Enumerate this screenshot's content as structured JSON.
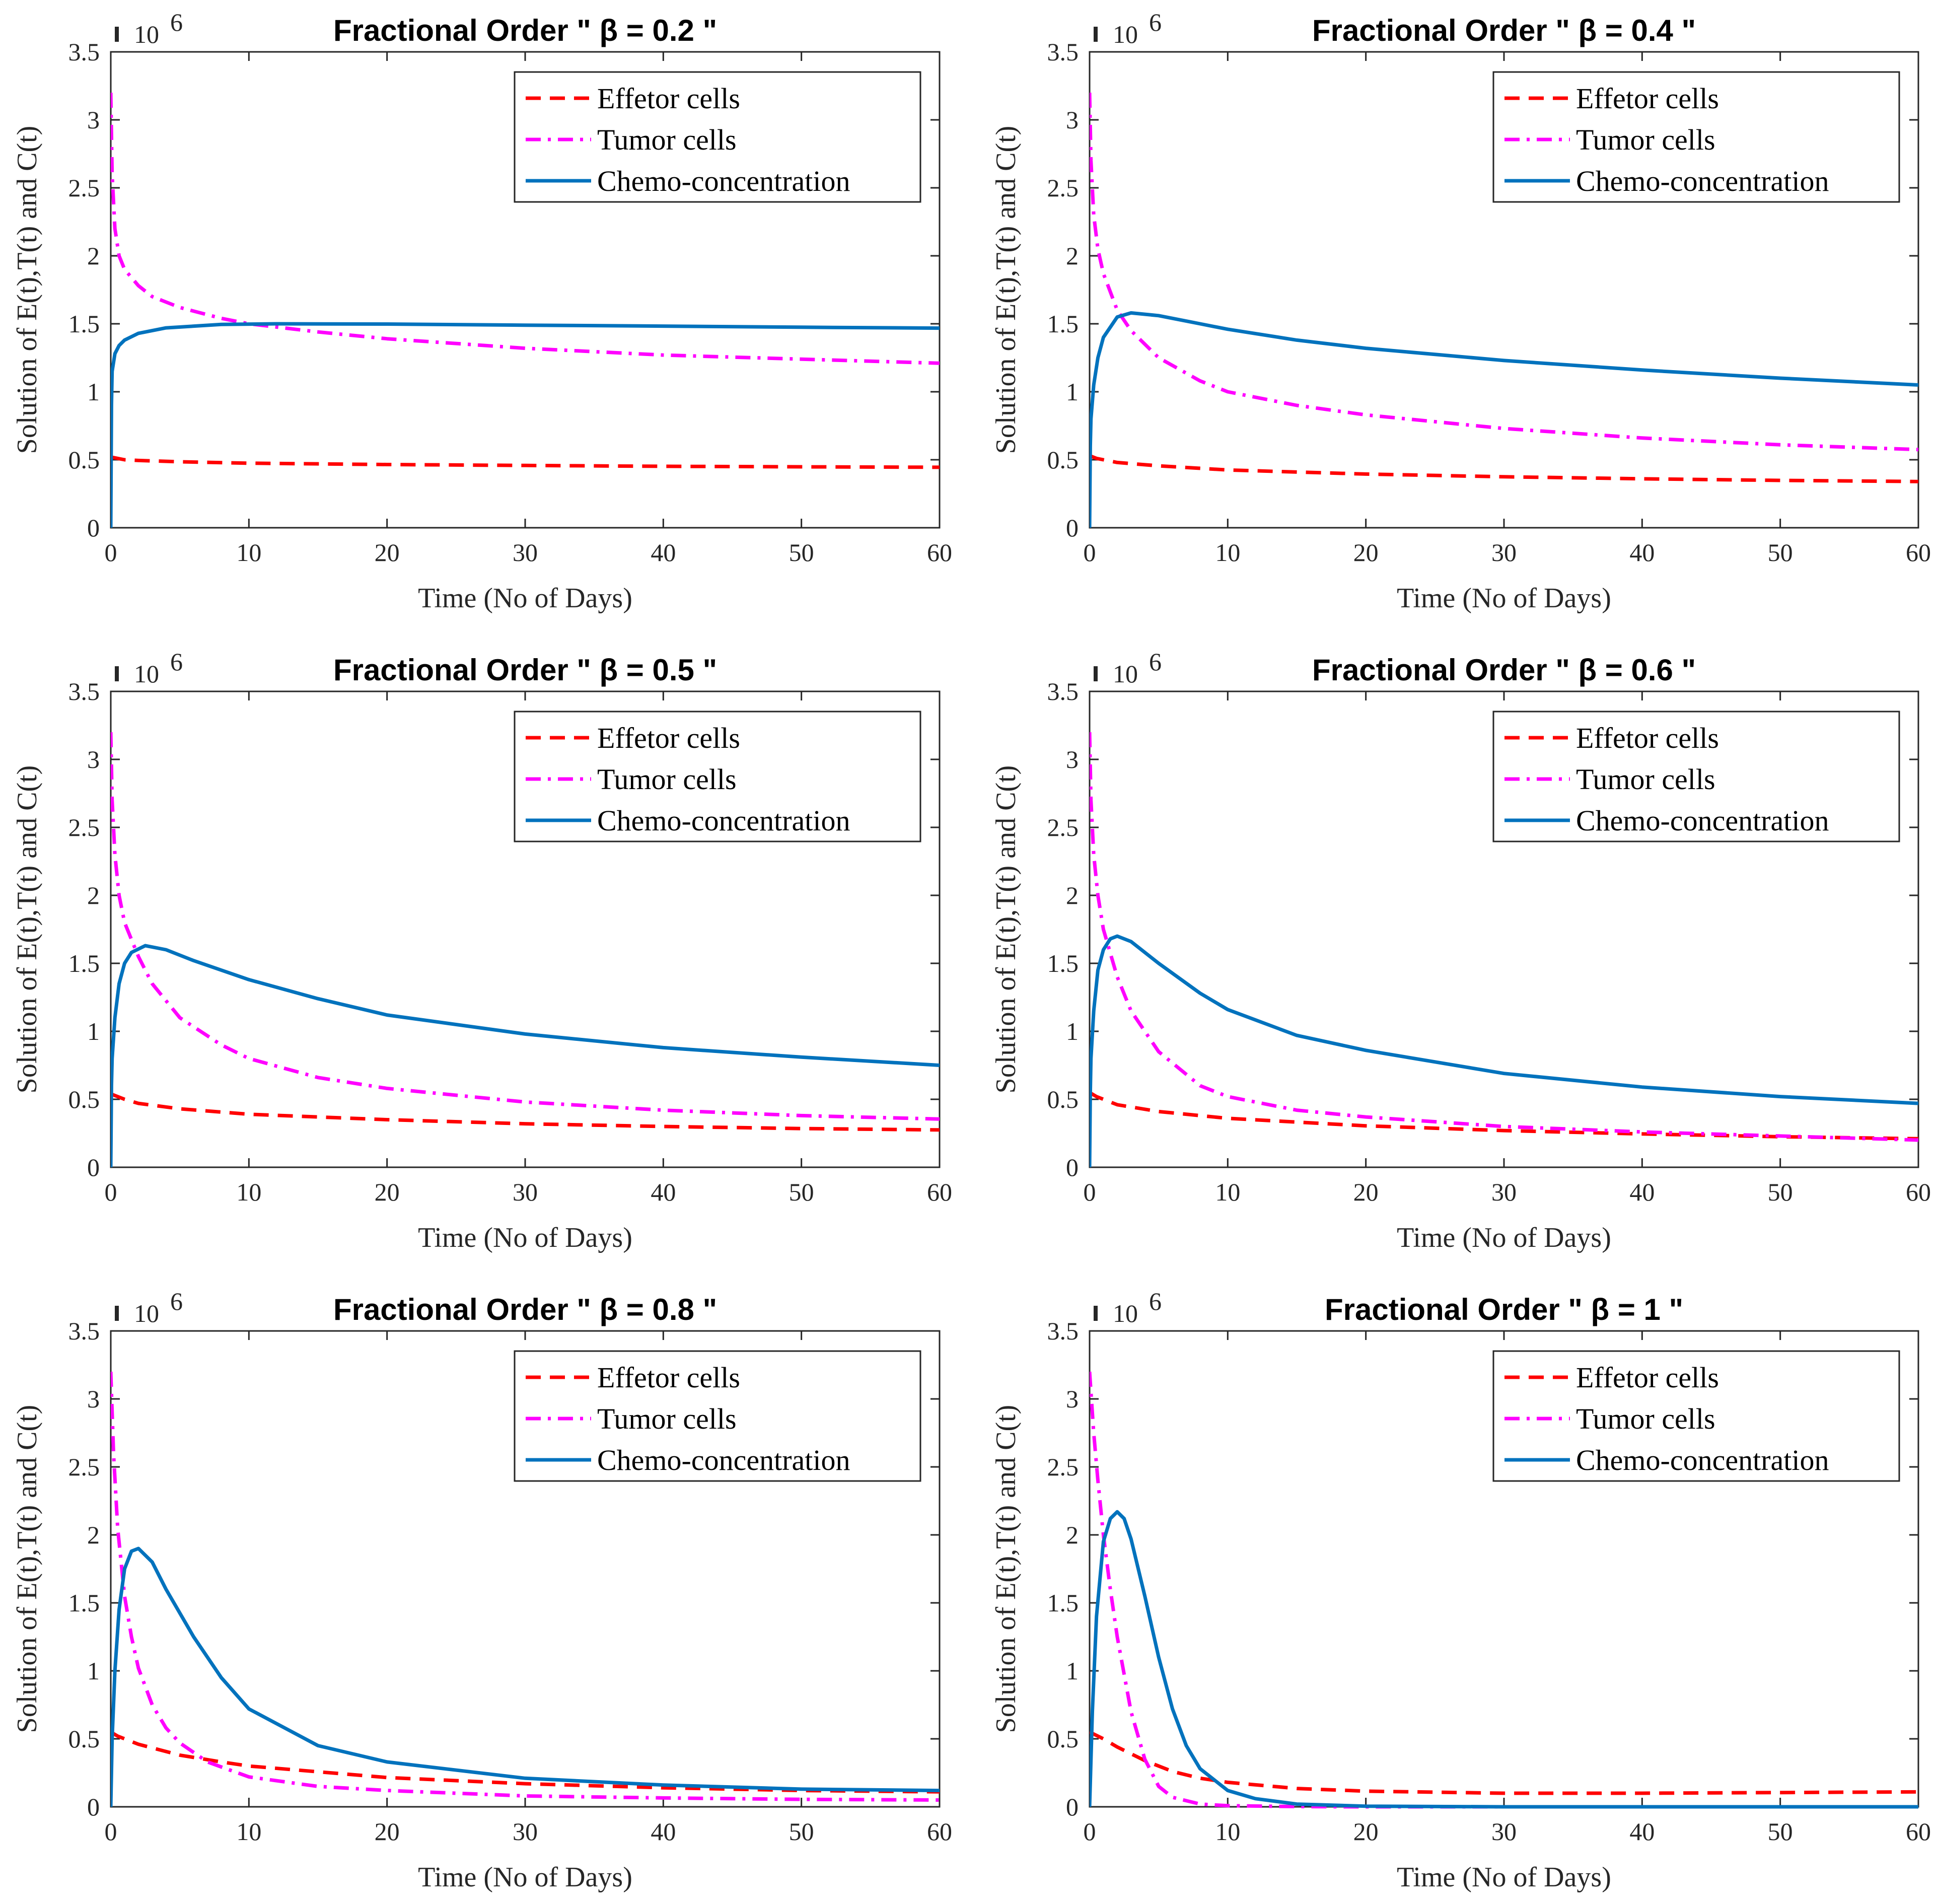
{
  "chart_data": [
    {
      "type": "line",
      "title": "Fractional Order \" β = 0.2 \"",
      "xlabel": "Time (No of Days)",
      "ylabel": "Solution of E(t),T(t) and C(t)",
      "y_multiplier_label": "10",
      "y_multiplier_exponent": "6",
      "xlim": [
        0,
        60
      ],
      "ylim": [
        0,
        3.5
      ],
      "xticks": [
        "0",
        "10",
        "20",
        "30",
        "40",
        "50",
        "60"
      ],
      "yticks": [
        "0",
        "0.5",
        "1",
        "1.5",
        "2",
        "2.5",
        "3",
        "3.5"
      ],
      "legend_position": "top-right",
      "series": [
        {
          "name": "Effetor cells",
          "style": "dashed",
          "color": "#ff0000",
          "x": [
            0,
            0.5,
            1,
            2,
            5,
            10,
            20,
            30,
            40,
            50,
            60
          ],
          "y": [
            0.52,
            0.51,
            0.5,
            0.495,
            0.485,
            0.475,
            0.465,
            0.458,
            0.452,
            0.448,
            0.445
          ]
        },
        {
          "name": "Tumor cells",
          "style": "dashdot",
          "color": "#ff00ff",
          "x": [
            0,
            0.1,
            0.3,
            0.6,
            1,
            2,
            3,
            5,
            8,
            10,
            15,
            20,
            30,
            40,
            50,
            60
          ],
          "y": [
            3.2,
            2.6,
            2.2,
            2.0,
            1.9,
            1.78,
            1.7,
            1.62,
            1.54,
            1.5,
            1.44,
            1.39,
            1.32,
            1.27,
            1.24,
            1.21
          ]
        },
        {
          "name": "Chemo-concentration",
          "style": "solid",
          "color": "#0072bd",
          "x": [
            0,
            0.05,
            0.1,
            0.3,
            0.6,
            1,
            2,
            4,
            8,
            12,
            20,
            30,
            40,
            50,
            60
          ],
          "y": [
            0,
            0.9,
            1.15,
            1.28,
            1.34,
            1.38,
            1.43,
            1.47,
            1.495,
            1.5,
            1.498,
            1.49,
            1.483,
            1.475,
            1.468
          ]
        }
      ]
    },
    {
      "type": "line",
      "title": "Fractional Order \" β = 0.4 \"",
      "xlabel": "Time (No of Days)",
      "ylabel": "Solution of E(t),T(t) and C(t)",
      "y_multiplier_label": "10",
      "y_multiplier_exponent": "6",
      "xlim": [
        0,
        60
      ],
      "ylim": [
        0,
        3.5
      ],
      "xticks": [
        "0",
        "10",
        "20",
        "30",
        "40",
        "50",
        "60"
      ],
      "yticks": [
        "0",
        "0.5",
        "1",
        "1.5",
        "2",
        "2.5",
        "3",
        "3.5"
      ],
      "legend_position": "top-right",
      "series": [
        {
          "name": "Effetor cells",
          "style": "dashed",
          "color": "#ff0000",
          "x": [
            0,
            0.5,
            1,
            2,
            5,
            10,
            20,
            30,
            40,
            50,
            60
          ],
          "y": [
            0.53,
            0.51,
            0.5,
            0.48,
            0.455,
            0.425,
            0.395,
            0.375,
            0.36,
            0.348,
            0.34
          ]
        },
        {
          "name": "Tumor cells",
          "style": "dashdot",
          "color": "#ff00ff",
          "x": [
            0,
            0.1,
            0.3,
            0.6,
            1,
            2,
            3,
            5,
            8,
            10,
            15,
            20,
            30,
            40,
            50,
            60
          ],
          "y": [
            3.2,
            2.7,
            2.3,
            2.05,
            1.87,
            1.6,
            1.45,
            1.25,
            1.08,
            1.0,
            0.9,
            0.83,
            0.73,
            0.66,
            0.61,
            0.575
          ]
        },
        {
          "name": "Chemo-concentration",
          "style": "solid",
          "color": "#0072bd",
          "x": [
            0,
            0.05,
            0.1,
            0.3,
            0.6,
            1,
            2,
            3,
            5,
            8,
            10,
            15,
            20,
            30,
            40,
            50,
            60
          ],
          "y": [
            0,
            0.6,
            0.8,
            1.05,
            1.25,
            1.4,
            1.55,
            1.58,
            1.56,
            1.5,
            1.46,
            1.38,
            1.32,
            1.23,
            1.16,
            1.1,
            1.05
          ]
        }
      ]
    },
    {
      "type": "line",
      "title": "Fractional Order \" β = 0.5 \"",
      "xlabel": "Time (No of Days)",
      "ylabel": "Solution of E(t),T(t) and C(t)",
      "y_multiplier_label": "10",
      "y_multiplier_exponent": "6",
      "xlim": [
        0,
        60
      ],
      "ylim": [
        0,
        3.5
      ],
      "xticks": [
        "0",
        "10",
        "20",
        "30",
        "40",
        "50",
        "60"
      ],
      "yticks": [
        "0",
        "0.5",
        "1",
        "1.5",
        "2",
        "2.5",
        "3",
        "3.5"
      ],
      "legend_position": "top-right",
      "series": [
        {
          "name": "Effetor cells",
          "style": "dashed",
          "color": "#ff0000",
          "x": [
            0,
            0.5,
            1,
            2,
            5,
            10,
            20,
            30,
            40,
            50,
            60
          ],
          "y": [
            0.54,
            0.52,
            0.5,
            0.47,
            0.43,
            0.39,
            0.35,
            0.32,
            0.3,
            0.285,
            0.275
          ]
        },
        {
          "name": "Tumor cells",
          "style": "dashdot",
          "color": "#ff00ff",
          "x": [
            0,
            0.1,
            0.3,
            0.6,
            1,
            2,
            3,
            5,
            8,
            10,
            15,
            20,
            30,
            40,
            50,
            60
          ],
          "y": [
            3.2,
            2.7,
            2.3,
            2.0,
            1.8,
            1.55,
            1.35,
            1.1,
            0.9,
            0.8,
            0.66,
            0.58,
            0.48,
            0.42,
            0.38,
            0.355
          ]
        },
        {
          "name": "Chemo-concentration",
          "style": "solid",
          "color": "#0072bd",
          "x": [
            0,
            0.05,
            0.1,
            0.3,
            0.6,
            1,
            1.5,
            2.5,
            4,
            6,
            10,
            15,
            20,
            30,
            40,
            50,
            60
          ],
          "y": [
            0,
            0.6,
            0.8,
            1.1,
            1.35,
            1.5,
            1.58,
            1.63,
            1.6,
            1.52,
            1.38,
            1.24,
            1.12,
            0.98,
            0.88,
            0.81,
            0.75
          ]
        }
      ]
    },
    {
      "type": "line",
      "title": "Fractional Order \" β = 0.6 \"",
      "xlabel": "Time (No of Days)",
      "ylabel": "Solution of E(t),T(t) and C(t)",
      "y_multiplier_label": "10",
      "y_multiplier_exponent": "6",
      "xlim": [
        0,
        60
      ],
      "ylim": [
        0,
        3.5
      ],
      "xticks": [
        "0",
        "10",
        "20",
        "30",
        "40",
        "50",
        "60"
      ],
      "yticks": [
        "0",
        "0.5",
        "1",
        "1.5",
        "2",
        "2.5",
        "3",
        "3.5"
      ],
      "legend_position": "top-right",
      "series": [
        {
          "name": "Effetor cells",
          "style": "dashed",
          "color": "#ff0000",
          "x": [
            0,
            0.5,
            1,
            2,
            5,
            10,
            20,
            30,
            40,
            50,
            60
          ],
          "y": [
            0.55,
            0.52,
            0.5,
            0.46,
            0.41,
            0.36,
            0.305,
            0.27,
            0.245,
            0.225,
            0.21
          ]
        },
        {
          "name": "Tumor cells",
          "style": "dashdot",
          "color": "#ff00ff",
          "x": [
            0,
            0.1,
            0.3,
            0.6,
            1,
            2,
            3,
            5,
            8,
            10,
            15,
            20,
            30,
            40,
            50,
            60
          ],
          "y": [
            3.2,
            2.7,
            2.3,
            2.0,
            1.75,
            1.4,
            1.15,
            0.85,
            0.6,
            0.52,
            0.42,
            0.37,
            0.3,
            0.26,
            0.23,
            0.2
          ]
        },
        {
          "name": "Chemo-concentration",
          "style": "solid",
          "color": "#0072bd",
          "x": [
            0,
            0.05,
            0.1,
            0.3,
            0.6,
            1,
            1.5,
            2,
            3,
            5,
            8,
            10,
            15,
            20,
            30,
            40,
            50,
            60
          ],
          "y": [
            0,
            0.55,
            0.8,
            1.15,
            1.45,
            1.6,
            1.68,
            1.7,
            1.66,
            1.5,
            1.28,
            1.16,
            0.97,
            0.86,
            0.69,
            0.59,
            0.52,
            0.47
          ]
        }
      ]
    },
    {
      "type": "line",
      "title": "Fractional Order \" β = 0.8 \"",
      "xlabel": "Time (No of Days)",
      "ylabel": "Solution of E(t),T(t) and C(t)",
      "y_multiplier_label": "10",
      "y_multiplier_exponent": "6",
      "xlim": [
        0,
        60
      ],
      "ylim": [
        0,
        3.5
      ],
      "xticks": [
        "0",
        "10",
        "20",
        "30",
        "40",
        "50",
        "60"
      ],
      "yticks": [
        "0",
        "0.5",
        "1",
        "1.5",
        "2",
        "2.5",
        "3",
        "3.5"
      ],
      "legend_position": "top-right",
      "series": [
        {
          "name": "Effetor cells",
          "style": "dashed",
          "color": "#ff0000",
          "x": [
            0,
            0.5,
            1,
            2,
            5,
            8,
            10,
            20,
            30,
            40,
            50,
            60
          ],
          "y": [
            0.55,
            0.52,
            0.5,
            0.46,
            0.38,
            0.33,
            0.3,
            0.215,
            0.17,
            0.14,
            0.12,
            0.11
          ]
        },
        {
          "name": "Tumor cells",
          "style": "dashdot",
          "color": "#ff00ff",
          "x": [
            0,
            0.2,
            0.5,
            1,
            1.5,
            2,
            3,
            4,
            5,
            7,
            10,
            15,
            20,
            30,
            40,
            50,
            60
          ],
          "y": [
            3.2,
            2.6,
            2.05,
            1.55,
            1.25,
            1.02,
            0.75,
            0.58,
            0.47,
            0.33,
            0.22,
            0.15,
            0.12,
            0.08,
            0.065,
            0.055,
            0.05
          ]
        },
        {
          "name": "Chemo-concentration",
          "style": "solid",
          "color": "#0072bd",
          "x": [
            0,
            0.1,
            0.3,
            0.6,
            1,
            1.5,
            2,
            3,
            4,
            6,
            8,
            10,
            15,
            20,
            30,
            40,
            50,
            60
          ],
          "y": [
            0,
            0.5,
            1.0,
            1.45,
            1.75,
            1.88,
            1.9,
            1.8,
            1.6,
            1.25,
            0.95,
            0.72,
            0.45,
            0.33,
            0.21,
            0.16,
            0.13,
            0.12
          ]
        }
      ]
    },
    {
      "type": "line",
      "title": "Fractional Order \" β = 1 \"",
      "xlabel": "Time (No of Days)",
      "ylabel": "Solution of E(t),T(t) and C(t)",
      "y_multiplier_label": "10",
      "y_multiplier_exponent": "6",
      "xlim": [
        0,
        60
      ],
      "ylim": [
        0,
        3.5
      ],
      "xticks": [
        "0",
        "10",
        "20",
        "30",
        "40",
        "50",
        "60"
      ],
      "yticks": [
        "0",
        "0.5",
        "1",
        "1.5",
        "2",
        "2.5",
        "3",
        "3.5"
      ],
      "legend_position": "top-right",
      "series": [
        {
          "name": "Effetor cells",
          "style": "dashed",
          "color": "#ff0000",
          "x": [
            0,
            1,
            2,
            4,
            6,
            8,
            10,
            15,
            20,
            30,
            40,
            50,
            60
          ],
          "y": [
            0.55,
            0.5,
            0.44,
            0.34,
            0.26,
            0.21,
            0.18,
            0.135,
            0.115,
            0.1,
            0.1,
            0.105,
            0.11
          ]
        },
        {
          "name": "Tumor cells",
          "style": "dashdot",
          "color": "#ff00ff",
          "x": [
            0,
            0.3,
            0.6,
            1,
            1.5,
            2,
            3,
            4,
            5,
            6,
            8,
            10,
            15,
            20,
            60
          ],
          "y": [
            3.2,
            2.75,
            2.4,
            2.0,
            1.6,
            1.25,
            0.7,
            0.35,
            0.15,
            0.07,
            0.02,
            0.008,
            0.002,
            0,
            0
          ]
        },
        {
          "name": "Chemo-concentration",
          "style": "solid",
          "color": "#0072bd",
          "x": [
            0,
            0.2,
            0.5,
            1,
            1.5,
            2,
            2.5,
            3,
            4,
            5,
            6,
            7,
            8,
            10,
            12,
            15,
            20,
            30,
            60
          ],
          "y": [
            0,
            0.7,
            1.4,
            1.95,
            2.12,
            2.17,
            2.12,
            1.97,
            1.55,
            1.1,
            0.72,
            0.45,
            0.28,
            0.12,
            0.06,
            0.02,
            0.005,
            0,
            0
          ]
        }
      ]
    }
  ]
}
